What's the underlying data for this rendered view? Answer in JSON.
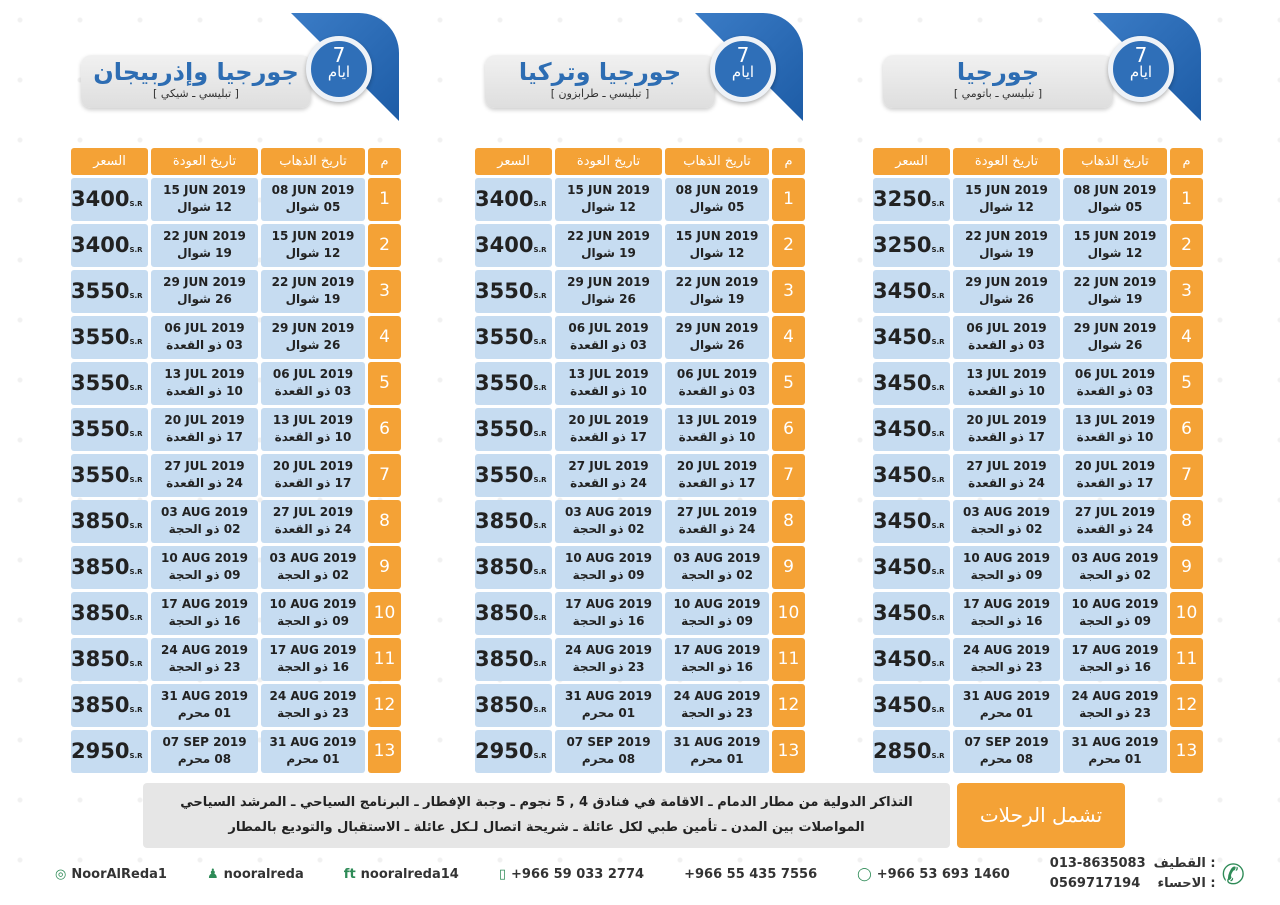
{
  "headers": {
    "num": "م",
    "departure": "تاريخ الذهاب",
    "return": "تاريخ العودة",
    "price": "السعر"
  },
  "currency": "S.R",
  "schedule": [
    {
      "n": "1",
      "dep": "08 JUN 2019",
      "dep_h": "05 شوال",
      "ret": "15 JUN 2019",
      "ret_h": "12 شوال"
    },
    {
      "n": "2",
      "dep": "15 JUN 2019",
      "dep_h": "12 شوال",
      "ret": "22 JUN 2019",
      "ret_h": "19 شوال"
    },
    {
      "n": "3",
      "dep": "22 JUN 2019",
      "dep_h": "19 شوال",
      "ret": "29 JUN 2019",
      "ret_h": "26 شوال"
    },
    {
      "n": "4",
      "dep": "29 JUN 2019",
      "dep_h": "26 شوال",
      "ret": "06 JUL 2019",
      "ret_h": "03 ذو القعدة"
    },
    {
      "n": "5",
      "dep": "06 JUL 2019",
      "dep_h": "03 ذو القعدة",
      "ret": "13 JUL 2019",
      "ret_h": "10 ذو القعدة"
    },
    {
      "n": "6",
      "dep": "13 JUL 2019",
      "dep_h": "10 ذو القعدة",
      "ret": "20 JUL 2019",
      "ret_h": "17 ذو القعدة"
    },
    {
      "n": "7",
      "dep": "20 JUL 2019",
      "dep_h": "17 ذو القعدة",
      "ret": "27 JUL 2019",
      "ret_h": "24 ذو القعدة"
    },
    {
      "n": "8",
      "dep": "27 JUL 2019",
      "dep_h": "24 ذو القعدة",
      "ret": "03 AUG 2019",
      "ret_h": "02 ذو الحجة"
    },
    {
      "n": "9",
      "dep": "03 AUG 2019",
      "dep_h": "02 ذو الحجة",
      "ret": "10 AUG 2019",
      "ret_h": "09 ذو الحجة"
    },
    {
      "n": "10",
      "dep": "10 AUG 2019",
      "dep_h": "09 ذو الحجة",
      "ret": "17 AUG 2019",
      "ret_h": "16 ذو الحجة"
    },
    {
      "n": "11",
      "dep": "17 AUG 2019",
      "dep_h": "16 ذو الحجة",
      "ret": "24 AUG 2019",
      "ret_h": "23 ذو الحجة"
    },
    {
      "n": "12",
      "dep": "24 AUG 2019",
      "dep_h": "23 ذو الحجة",
      "ret": "31 AUG 2019",
      "ret_h": "01 محرم"
    },
    {
      "n": "13",
      "dep": "31 AUG 2019",
      "dep_h": "01 محرم",
      "ret": "07 SEP 2019",
      "ret_h": "08 محرم"
    }
  ],
  "packages": [
    {
      "title": "جورجيا",
      "subtitle": "[ تبليسي ـ باتومي ]",
      "days": "7",
      "days_label": "ايام",
      "prices": [
        "3250",
        "3250",
        "3450",
        "3450",
        "3450",
        "3450",
        "3450",
        "3450",
        "3450",
        "3450",
        "3450",
        "3450",
        "2850"
      ]
    },
    {
      "title": "جورجيا وتركيا",
      "subtitle": "[ تبليسي ـ طرابزون ]",
      "days": "7",
      "days_label": "ايام",
      "prices": [
        "3400",
        "3400",
        "3550",
        "3550",
        "3550",
        "3550",
        "3550",
        "3850",
        "3850",
        "3850",
        "3850",
        "3850",
        "2950"
      ]
    },
    {
      "title": "جورجيا وإذربيجان",
      "subtitle": "[ تبليسي ـ شيكي ]",
      "days": "7",
      "days_label": "ايام",
      "prices": [
        "3400",
        "3400",
        "3550",
        "3550",
        "3550",
        "3550",
        "3550",
        "3850",
        "3850",
        "3850",
        "3850",
        "3850",
        "2950"
      ]
    }
  ],
  "includes": {
    "label": "تشمل الرحلات",
    "line1": "التذاكر الدولية من مطار الدمام ـ الاقامة في فنادق 4 , 5 نجوم ـ وجبة الإفطار ـ البرنامج السياحي ـ المرشد السياحي",
    "line2": "المواصلات بين المدن ـ تأمين طبي لكل عائلة ـ شريحة اتصال لـكل عائلة ـ الاستقبال والتوديع بالمطار"
  },
  "contacts": {
    "qatif_label": "القطيف :",
    "qatif": "013-8635083",
    "ahsa_label": "الاحساء :",
    "ahsa": "0569717194",
    "whatsapp": "+966 53 693 1460",
    "phone2": "+966 55 435 7556",
    "mobile": "+966 59 033 2774",
    "facebook_twitter": "nooralreda14",
    "snapchat": "nooralreda",
    "instagram": "NoorAlReda1"
  },
  "colors": {
    "orange": "#f4a236",
    "blue": "#2d6db3",
    "cell": "#c6dcf1"
  }
}
